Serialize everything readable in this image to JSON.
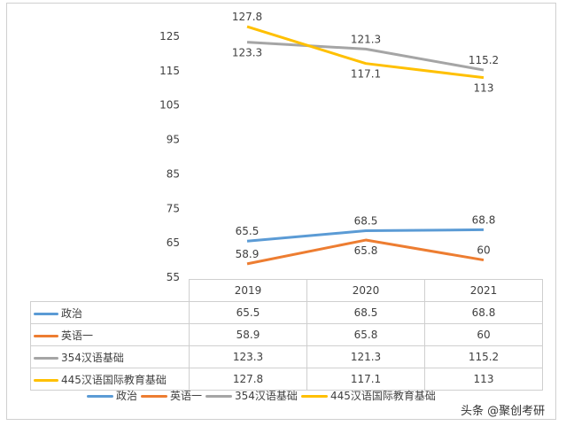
{
  "chart_data": {
    "type": "line",
    "categories": [
      "2019",
      "2020",
      "2021"
    ],
    "ylim": [
      55,
      125
    ],
    "yticks": [
      55,
      65,
      75,
      85,
      95,
      105,
      115,
      125
    ],
    "grid": false,
    "legend_position": "bottom",
    "data_table": true,
    "series": [
      {
        "name": "政治",
        "values": [
          65.5,
          68.5,
          68.8
        ],
        "color": "#5b9bd5"
      },
      {
        "name": "英语一",
        "values": [
          58.9,
          65.8,
          60
        ],
        "color": "#ed7d31"
      },
      {
        "name": "354汉语基础",
        "values": [
          123.3,
          121.3,
          115.2
        ],
        "color": "#a5a5a5"
      },
      {
        "name": "445汉语国际教育基础",
        "values": [
          127.8,
          117.1,
          113
        ],
        "color": "#ffc000"
      }
    ]
  },
  "watermark": "头条 @聚创考研"
}
